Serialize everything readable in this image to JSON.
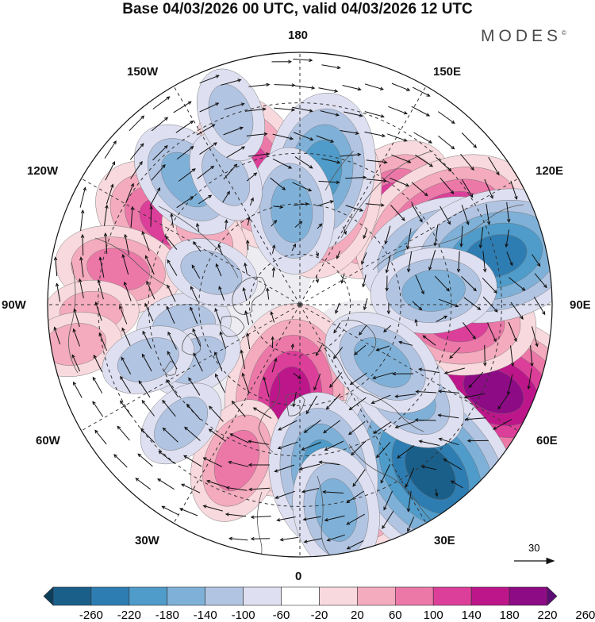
{
  "title": "Base 04/03/2026 00 UTC, valid 04/03/2026 12 UTC",
  "brand": "MODES",
  "brand_mark": "©",
  "longitude_labels": {
    "n180": "180",
    "e150": "150E",
    "e120": "120E",
    "e90": "90E",
    "e60": "60E",
    "e30": "30E",
    "p0": "0",
    "w30": "30W",
    "w60": "60W",
    "w90": "90W",
    "w120": "120W",
    "w150": "150W"
  },
  "reference_vector": {
    "label": "30"
  },
  "colorbar": {
    "ticks": [
      "-260",
      "-220",
      "-180",
      "-140",
      "-100",
      "-60",
      "-20",
      "20",
      "60",
      "100",
      "140",
      "180",
      "220",
      "260"
    ],
    "colors": [
      "#0d3f5d",
      "#1a5f8a",
      "#2e7db2",
      "#4f9bc9",
      "#7fb1d8",
      "#b1c4e2",
      "#dedff0",
      "#ffffff",
      "#f8d9dd",
      "#f3abbd",
      "#ec78a8",
      "#dc3f99",
      "#bd168a",
      "#8d0b85",
      "#5d0c74"
    ]
  },
  "anomaly_features": [
    {
      "sign": "positive",
      "level": 3,
      "lon": 138,
      "lat": 52
    },
    {
      "sign": "positive",
      "level": 4,
      "lon": 118,
      "lat": 41
    },
    {
      "sign": "positive",
      "level": 3,
      "lon": 166,
      "lat": 58
    },
    {
      "sign": "positive",
      "level": 2,
      "lon": -166,
      "lat": 54
    },
    {
      "sign": "positive",
      "level": 3,
      "lon": -160,
      "lat": 48
    },
    {
      "sign": "positive",
      "level": 2,
      "lon": -128,
      "lat": 47
    },
    {
      "sign": "positive",
      "level": 3,
      "lon": -122,
      "lat": 44
    },
    {
      "sign": "positive",
      "level": 1,
      "lon": -126,
      "lat": 55
    },
    {
      "sign": "positive",
      "level": 2,
      "lon": -101,
      "lat": 35
    },
    {
      "sign": "positive",
      "level": 1,
      "lon": -88,
      "lat": 28
    },
    {
      "sign": "positive",
      "level": 1,
      "lon": -80,
      "lat": 22
    },
    {
      "sign": "positive",
      "level": 3,
      "lon": -10,
      "lat": 56
    },
    {
      "sign": "positive",
      "level": 4,
      "lon": -6,
      "lat": 62
    },
    {
      "sign": "positive",
      "level": 2,
      "lon": -22,
      "lat": 40
    },
    {
      "sign": "positive",
      "level": 3,
      "lon": 18,
      "lat": 36
    },
    {
      "sign": "positive",
      "level": 2,
      "lon": 30,
      "lat": 30
    },
    {
      "sign": "positive",
      "level": 3,
      "lon": 74,
      "lat": 40
    },
    {
      "sign": "positive",
      "level": 5,
      "lon": 66,
      "lat": 27
    },
    {
      "sign": "positive",
      "level": 3,
      "lon": 84,
      "lat": 43
    },
    {
      "sign": "negative",
      "level": 3,
      "lon": 171,
      "lat": 50
    },
    {
      "sign": "negative",
      "level": 2,
      "lon": -175,
      "lat": 62
    },
    {
      "sign": "negative",
      "level": 2,
      "lon": -138,
      "lat": 40
    },
    {
      "sign": "negative",
      "level": 1,
      "lon": -150,
      "lat": 46
    },
    {
      "sign": "negative",
      "level": 1,
      "lon": -160,
      "lat": 30
    },
    {
      "sign": "negative",
      "level": 3,
      "lon": 110,
      "lat": 46
    },
    {
      "sign": "negative",
      "level": 4,
      "lon": 104,
      "lat": 30
    },
    {
      "sign": "negative",
      "level": 2,
      "lon": 96,
      "lat": 50
    },
    {
      "sign": "negative",
      "level": 4,
      "lon": 41,
      "lat": 34
    },
    {
      "sign": "negative",
      "level": 5,
      "lon": 38,
      "lat": 27
    },
    {
      "sign": "negative",
      "level": 2,
      "lon": 50,
      "lat": 48
    },
    {
      "sign": "negative",
      "level": 2,
      "lon": 55,
      "lat": 60
    },
    {
      "sign": "negative",
      "level": 3,
      "lon": 8,
      "lat": 40
    },
    {
      "sign": "negative",
      "level": 2,
      "lon": 10,
      "lat": 28
    },
    {
      "sign": "negative",
      "level": 1,
      "lon": -80,
      "lat": 55
    },
    {
      "sign": "negative",
      "level": 1,
      "lon": -62,
      "lat": 55
    },
    {
      "sign": "negative",
      "level": 1,
      "lon": -45,
      "lat": 40
    },
    {
      "sign": "negative",
      "level": 1,
      "lon": -70,
      "lat": 42
    },
    {
      "sign": "negative",
      "level": 1,
      "lon": -110,
      "lat": 62
    }
  ]
}
